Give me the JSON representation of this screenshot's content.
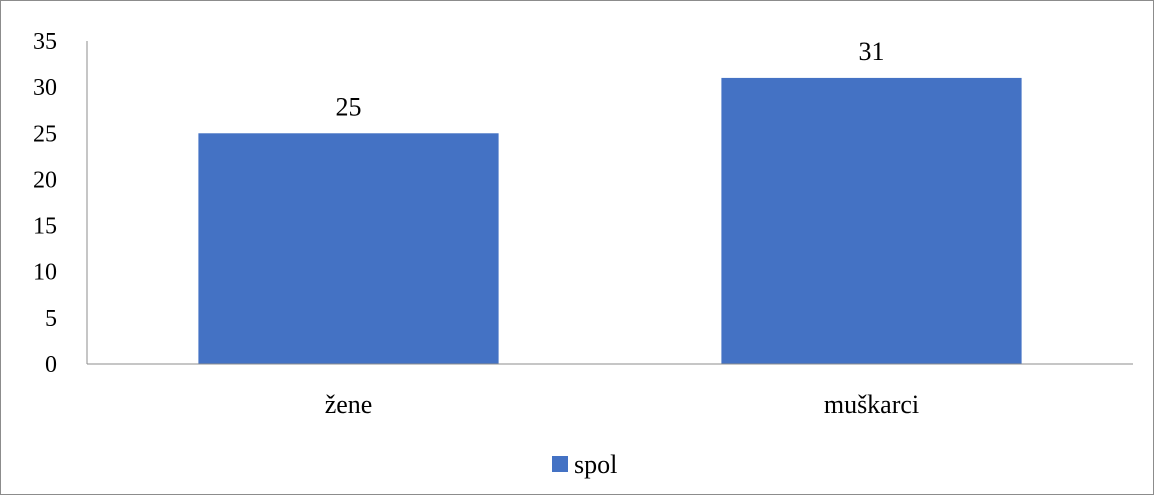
{
  "chart_data": {
    "type": "bar",
    "categories": [
      "žene",
      "muškarci"
    ],
    "series": [
      {
        "name": "spol",
        "values": [
          25,
          31
        ],
        "color": "#4472C4"
      }
    ],
    "title": "",
    "xlabel": "",
    "ylabel": "",
    "ylim": [
      0,
      35
    ],
    "yticks": [
      0,
      5,
      10,
      15,
      20,
      25,
      30,
      35
    ],
    "data_labels": true,
    "grid": false,
    "legend": {
      "position": "bottom",
      "entries": [
        "spol"
      ]
    },
    "axis_color": "#8c8c8c"
  }
}
